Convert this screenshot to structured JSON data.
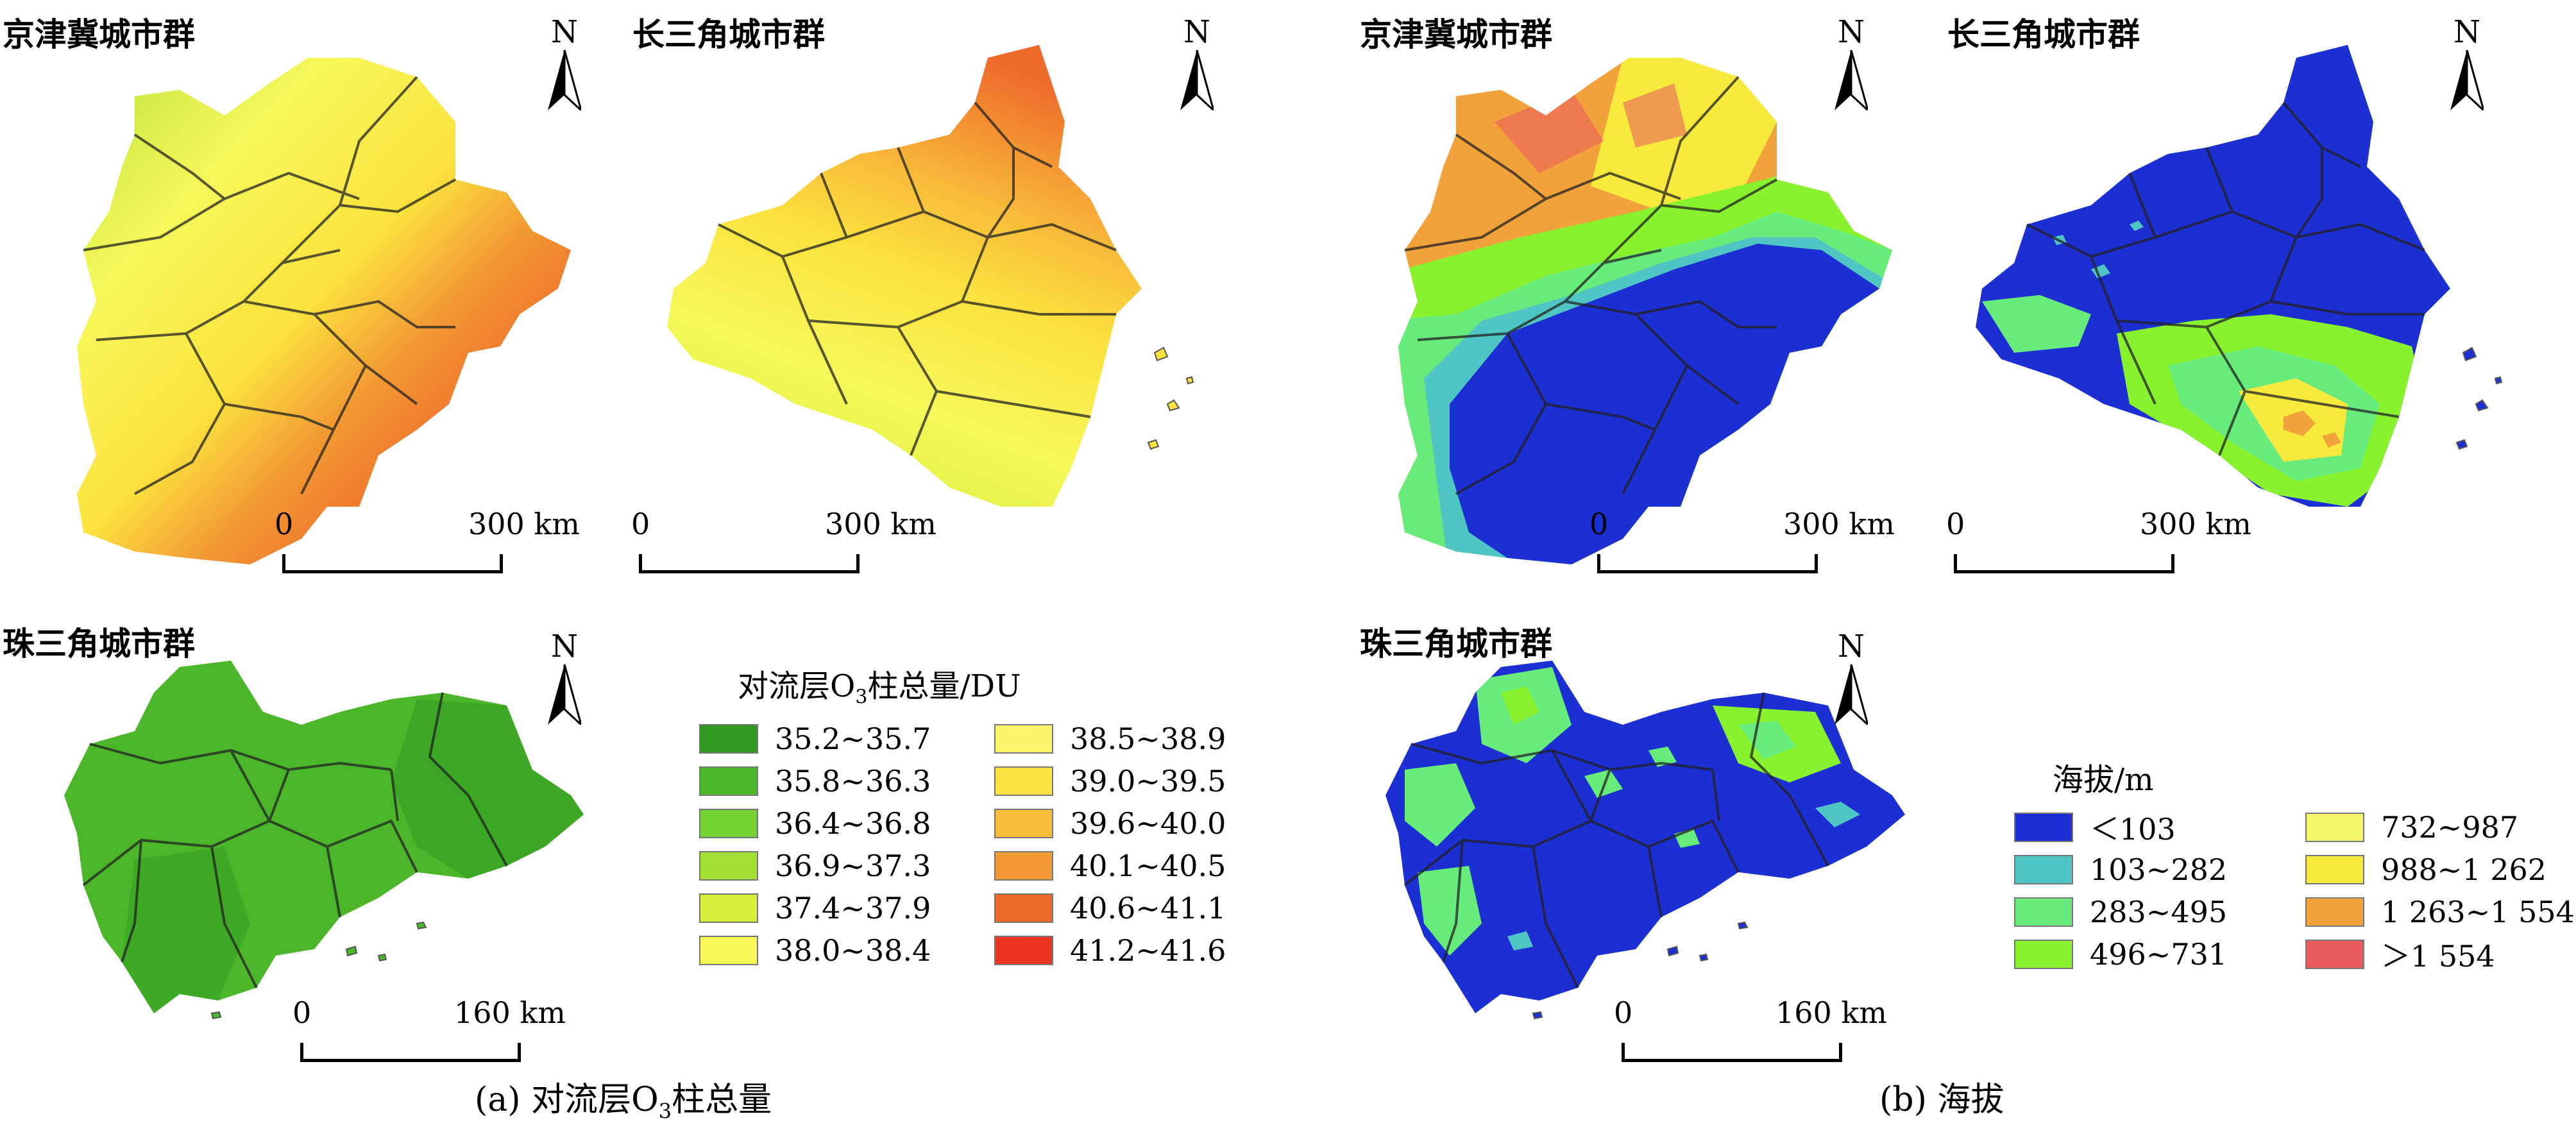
{
  "panel_a": {
    "regions": [
      {
        "title": "京津冀城市群",
        "scale_zero": "0",
        "scale_end": "300 km",
        "north": "N"
      },
      {
        "title": "长三角城市群",
        "scale_zero": "0",
        "scale_end": "300 km",
        "north": "N"
      },
      {
        "title": "珠三角城市群",
        "scale_zero": "0",
        "scale_end": "160 km",
        "north": "N"
      }
    ],
    "legend": {
      "title_pre": "对流层O",
      "title_sub": "3",
      "title_post": "柱总量/DU",
      "items": [
        {
          "label": "35.2~35.7",
          "color": "#2f9a1f"
        },
        {
          "label": "35.8~36.3",
          "color": "#4cb62a"
        },
        {
          "label": "36.4~36.8",
          "color": "#73d232"
        },
        {
          "label": "36.9~37.3",
          "color": "#a1e034"
        },
        {
          "label": "37.4~37.9",
          "color": "#d4ee3a"
        },
        {
          "label": "38.0~38.4",
          "color": "#f6f85a"
        },
        {
          "label": "38.5~38.9",
          "color": "#fcf46a"
        },
        {
          "label": "39.0~39.5",
          "color": "#fbe23e"
        },
        {
          "label": "39.6~40.0",
          "color": "#f8bd3a"
        },
        {
          "label": "40.1~40.5",
          "color": "#f29a33"
        },
        {
          "label": "40.6~41.1",
          "color": "#ee6a2a"
        },
        {
          "label": "41.2~41.6",
          "color": "#ec3424"
        }
      ]
    },
    "caption_pre": "(a)  对流层O",
    "caption_sub": "3",
    "caption_post": "柱总量"
  },
  "panel_b": {
    "regions": [
      {
        "title": "京津冀城市群",
        "scale_zero": "0",
        "scale_end": "300 km",
        "north": "N"
      },
      {
        "title": "长三角城市群",
        "scale_zero": "0",
        "scale_end": "300 km",
        "north": "N"
      },
      {
        "title": "珠三角城市群",
        "scale_zero": "0",
        "scale_end": "160 km",
        "north": "N"
      }
    ],
    "legend": {
      "title": "海拔/m",
      "items": [
        {
          "label": "＜103",
          "color": "#1c2fd2"
        },
        {
          "label": "103~282",
          "color": "#4fc6c4"
        },
        {
          "label": "283~495",
          "color": "#67ec7c"
        },
        {
          "label": "496~731",
          "color": "#88f22e"
        },
        {
          "label": "732~987",
          "color": "#f6f66c"
        },
        {
          "label": "988~1 262",
          "color": "#f7ea3c"
        },
        {
          "label": "1 263~1 554",
          "color": "#f1a23a"
        },
        {
          "label": "＞1 554",
          "color": "#e75a5e"
        }
      ]
    },
    "caption": "(b)  海拔"
  }
}
